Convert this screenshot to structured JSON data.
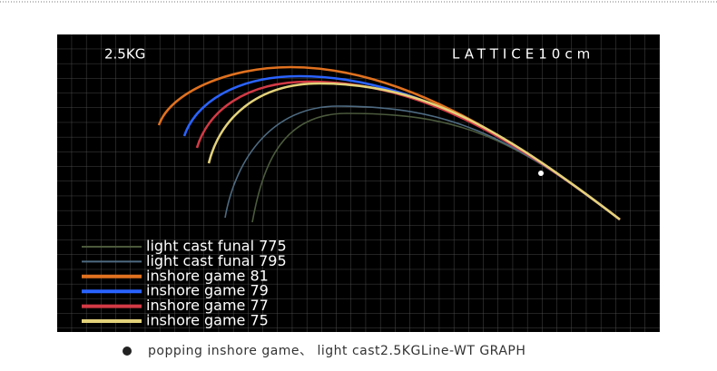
{
  "header": {
    "weight": "2.5KG",
    "lattice": "LATTICE10cm"
  },
  "legend": [
    {
      "name": "light cast funal 775",
      "color": "#4b5a3c"
    },
    {
      "name": "light cast funal 795",
      "color": "#4e6b82"
    },
    {
      "name": "inshore game 81",
      "color": "#e0711f"
    },
    {
      "name": "inshore game 79",
      "color": "#2a63ff"
    },
    {
      "name": "inshore game 77",
      "color": "#d23a45"
    },
    {
      "name": "inshore game 75",
      "color": "#e3d27a"
    }
  ],
  "caption": "popping inshore game、 light cast2.5KGLine-WT GRAPH"
}
